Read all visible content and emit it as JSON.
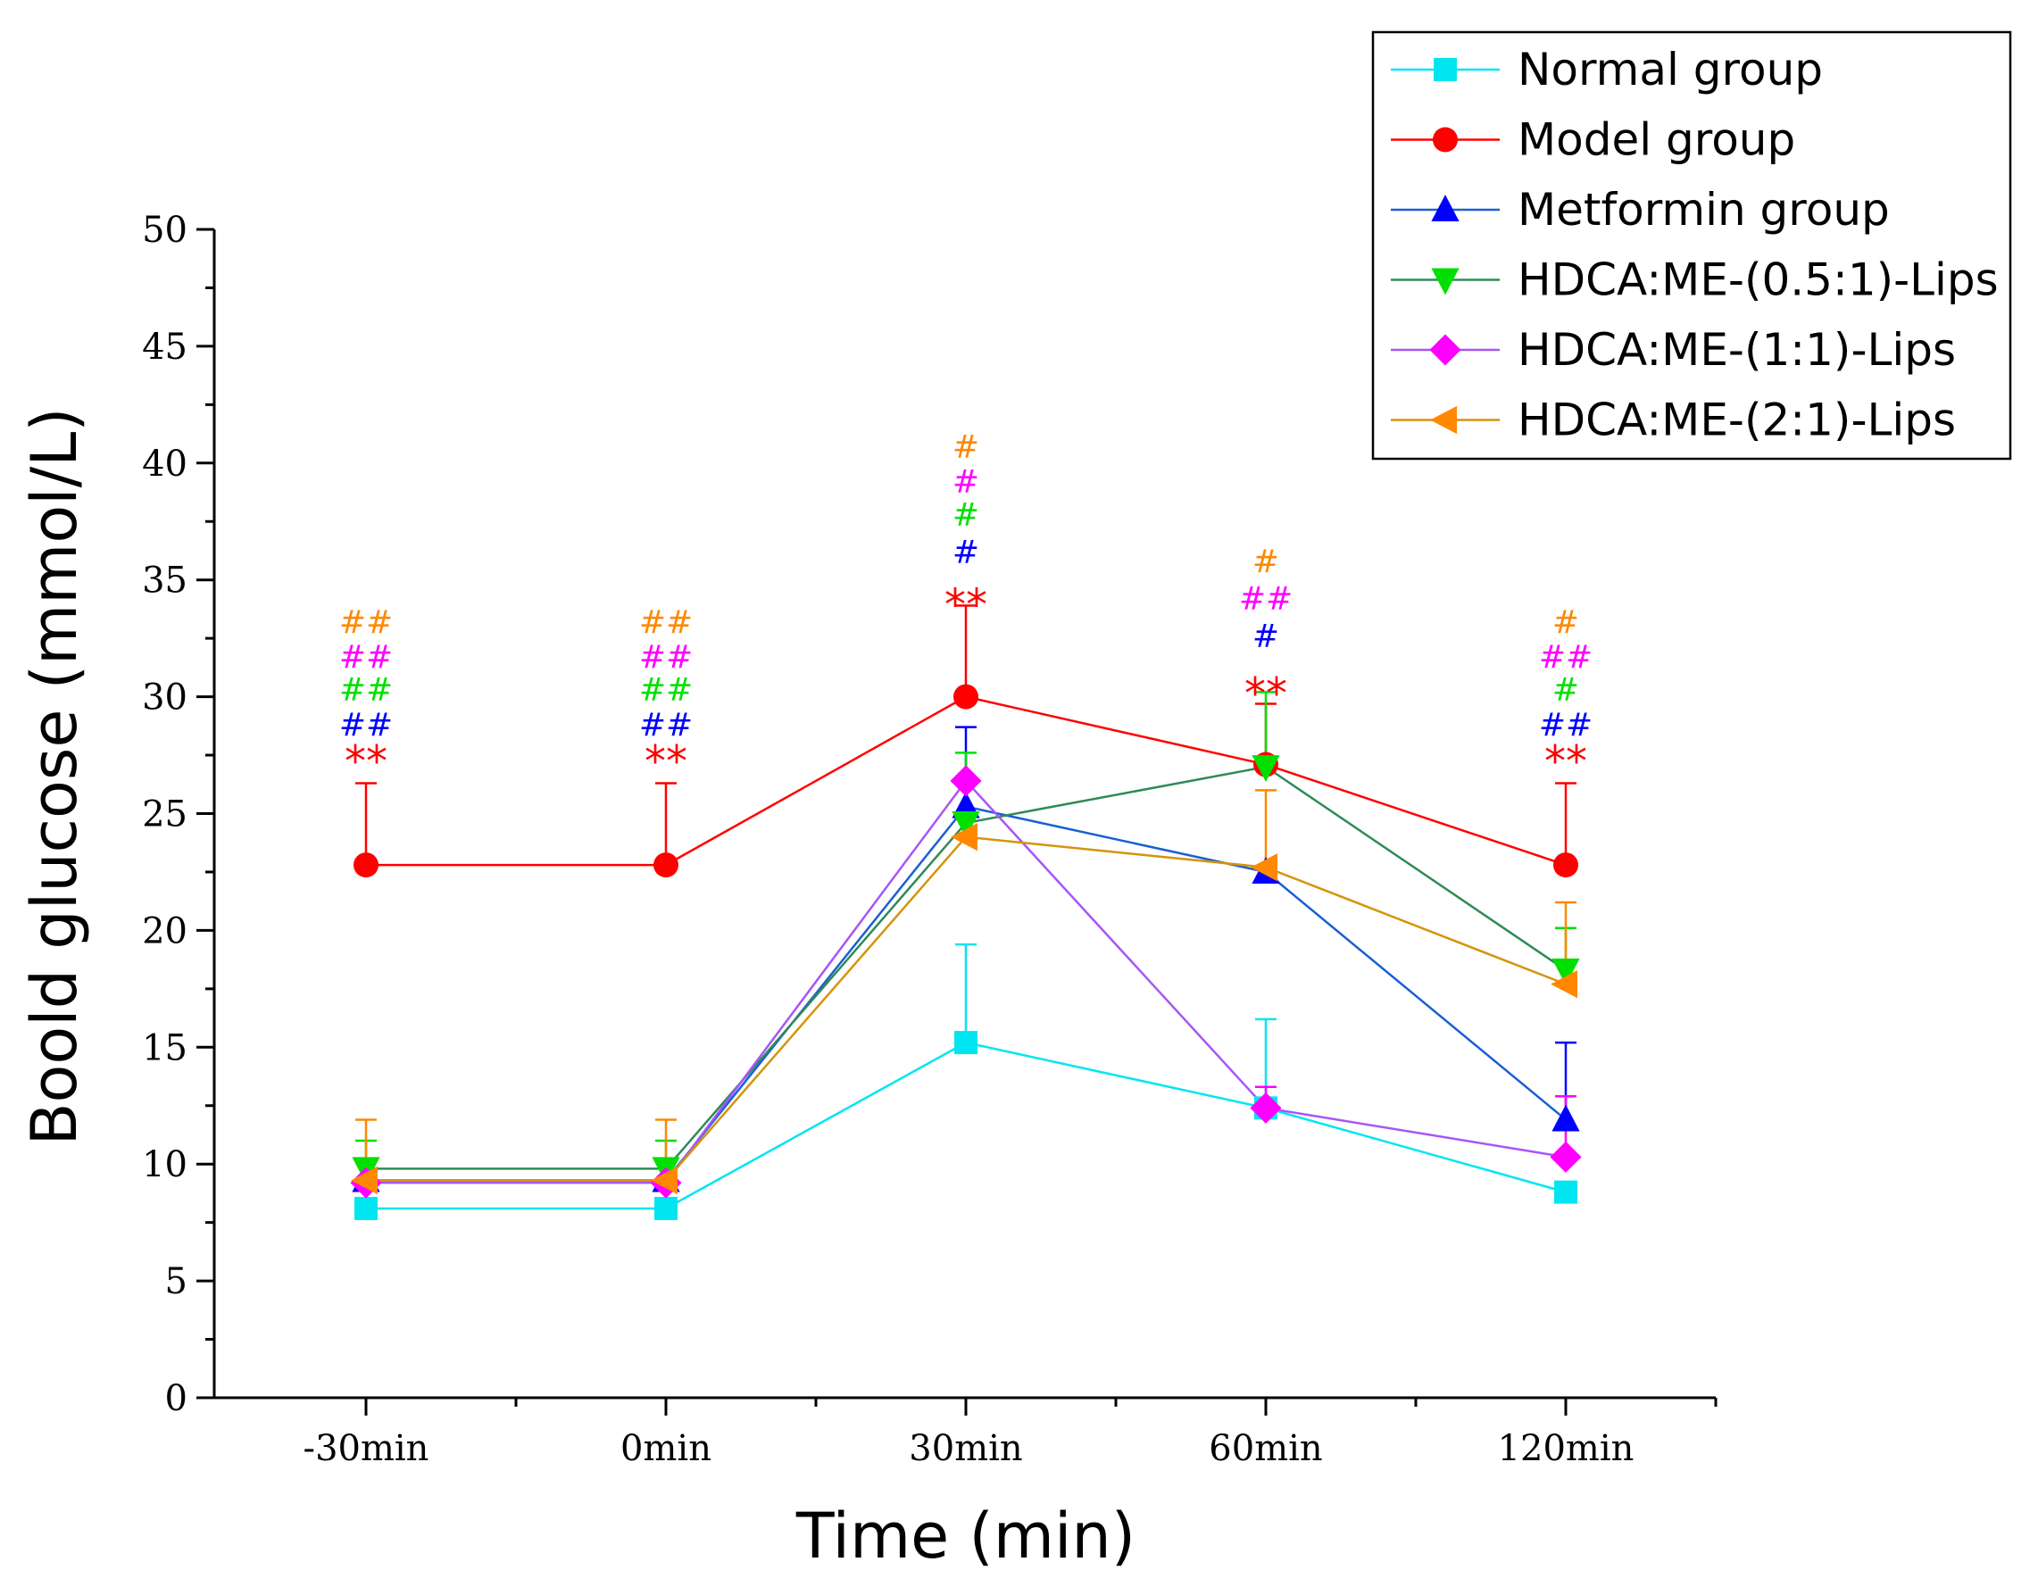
{
  "chart_data": {
    "type": "line",
    "title": "",
    "xlabel": "Time (min)",
    "ylabel": "Boold glucose (mmol/L)",
    "categories": [
      "-30min",
      "0min",
      "30min",
      "60min",
      "120min"
    ],
    "yticks": [
      0,
      5,
      10,
      15,
      20,
      25,
      30,
      35,
      40,
      45,
      50
    ],
    "ylim": [
      0,
      50
    ],
    "legend_position": "top-right",
    "series": [
      {
        "name": "Normal group",
        "color": "#00e6f0",
        "marker": "square",
        "values": [
          8.1,
          8.1,
          15.2,
          12.4,
          8.8
        ],
        "errors": [
          0,
          0,
          4.2,
          3.8,
          0
        ]
      },
      {
        "name": "Model group",
        "color": "#ff0000",
        "marker": "circle",
        "values": [
          22.8,
          22.8,
          30.0,
          27.1,
          22.8
        ],
        "errors": [
          3.5,
          3.5,
          3.9,
          2.6,
          3.5
        ]
      },
      {
        "name": "Metformin group",
        "color": "#0000ff",
        "marker": "triangle-up",
        "values": [
          9.3,
          9.3,
          25.3,
          22.5,
          11.9
        ],
        "errors": [
          0,
          0,
          3.4,
          0,
          3.3
        ]
      },
      {
        "name": "HDCA:ME-(0.5:1)-Lips",
        "color": "#00e000",
        "marker": "triangle-down",
        "values": [
          9.8,
          9.8,
          24.6,
          27.0,
          18.3
        ],
        "errors": [
          1.2,
          1.2,
          3.0,
          3.2,
          1.8
        ]
      },
      {
        "name": "HDCA:ME-(1:1)-Lips",
        "color": "#ff00ff",
        "marker": "diamond",
        "values": [
          9.2,
          9.2,
          26.4,
          12.4,
          10.3
        ],
        "errors": [
          0,
          0,
          0,
          0.9,
          2.6
        ]
      },
      {
        "name": "HDCA:ME-(2:1)-Lips",
        "color": "#ff8800",
        "marker": "triangle-left",
        "values": [
          9.3,
          9.3,
          24.0,
          22.7,
          17.7
        ],
        "errors": [
          2.6,
          2.6,
          0,
          3.3,
          3.5
        ]
      }
    ],
    "line_colors": [
      "#00e6f0",
      "#ff0000",
      "#1a5fd6",
      "#2e8b57",
      "#a855f7",
      "#d4940c"
    ],
    "annotations": [
      {
        "x_index": 0,
        "marks": [
          {
            "text": "**",
            "color": "#ff0000",
            "y": 27.6
          },
          {
            "text": "##",
            "color": "#0000ff",
            "y": 28.8
          },
          {
            "text": "##",
            "color": "#00e000",
            "y": 30.3
          },
          {
            "text": "##",
            "color": "#ff00ff",
            "y": 31.7
          },
          {
            "text": "##",
            "color": "#ff8800",
            "y": 33.2
          }
        ]
      },
      {
        "x_index": 1,
        "marks": [
          {
            "text": "**",
            "color": "#ff0000",
            "y": 27.6
          },
          {
            "text": "##",
            "color": "#0000ff",
            "y": 28.8
          },
          {
            "text": "##",
            "color": "#00e000",
            "y": 30.3
          },
          {
            "text": "##",
            "color": "#ff00ff",
            "y": 31.7
          },
          {
            "text": "##",
            "color": "#ff8800",
            "y": 33.2
          }
        ]
      },
      {
        "x_index": 2,
        "marks": [
          {
            "text": "**",
            "color": "#ff0000",
            "y": 34.3
          },
          {
            "text": "#",
            "color": "#0000ff",
            "y": 36.2
          },
          {
            "text": "#",
            "color": "#00e000",
            "y": 37.8
          },
          {
            "text": "#",
            "color": "#ff00ff",
            "y": 39.2
          },
          {
            "text": "#",
            "color": "#ff8800",
            "y": 40.7
          }
        ]
      },
      {
        "x_index": 3,
        "marks": [
          {
            "text": "**",
            "color": "#ff0000",
            "y": 30.5
          },
          {
            "text": "#",
            "color": "#0000ff",
            "y": 32.6
          },
          {
            "text": "##",
            "color": "#ff00ff",
            "y": 34.2
          },
          {
            "text": "#",
            "color": "#ff8800",
            "y": 35.8
          }
        ]
      },
      {
        "x_index": 4,
        "marks": [
          {
            "text": "**",
            "color": "#ff0000",
            "y": 27.6
          },
          {
            "text": "##",
            "color": "#0000ff",
            "y": 28.8
          },
          {
            "text": "#",
            "color": "#00e000",
            "y": 30.3
          },
          {
            "text": "##",
            "color": "#ff00ff",
            "y": 31.7
          },
          {
            "text": "#",
            "color": "#ff8800",
            "y": 33.2
          }
        ]
      }
    ]
  }
}
